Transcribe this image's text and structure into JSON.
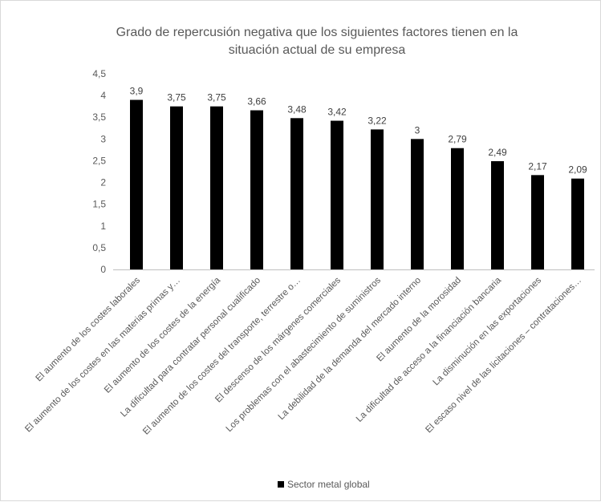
{
  "chart_data": {
    "type": "bar",
    "title_lines": [
      "Grado de repercusión negativa que los  siguientes factores tienen en la",
      "situación actual de su empresa"
    ],
    "categories": [
      "El aumento de los costes laborales",
      "El aumento de los costes en las materias primas y…",
      "El aumento de los costes de la energía",
      "La dificultad para contratar personal cualificado",
      "El aumento de los costes del transporte, terrestre o…",
      "El descenso de los márgenes comerciales",
      "Los problemas con el abastecimiento de suministros",
      "La debilidad de la demanda del mercado interno",
      "El aumento de la morosidad",
      "La dificultad de acceso a la financiación bancaria",
      "La disminución en las exportaciones",
      "El escaso nivel de las licitaciones – contrataciones…"
    ],
    "series": [
      {
        "name": "Sector metal global",
        "color": "#000000",
        "values": [
          3.9,
          3.75,
          3.75,
          3.66,
          3.48,
          3.42,
          3.22,
          3,
          2.79,
          2.49,
          2.17,
          2.09
        ]
      }
    ],
    "data_labels": [
      "3,9",
      "3,75",
      "3,75",
      "3,66",
      "3,48",
      "3,42",
      "3,22",
      "3",
      "2,79",
      "2,49",
      "2,17",
      "2,09"
    ],
    "y_ticks": [
      0,
      0.5,
      1,
      1.5,
      2,
      2.5,
      3,
      3.5,
      4,
      4.5
    ],
    "y_tick_labels": [
      "0",
      "0,5",
      "1",
      "1,5",
      "2",
      "2,5",
      "3",
      "3,5",
      "4",
      "4,5"
    ],
    "ylim": [
      0,
      4.5
    ],
    "grid": false,
    "legend_position": "bottom"
  }
}
